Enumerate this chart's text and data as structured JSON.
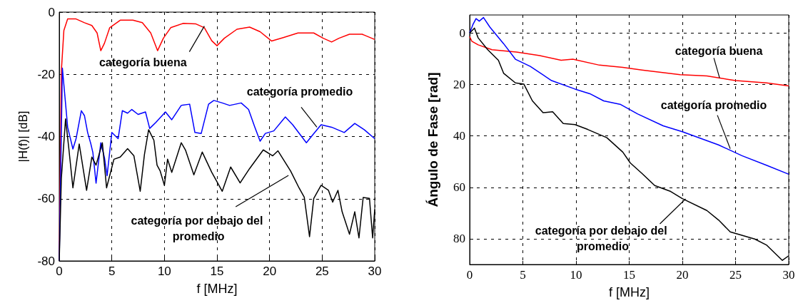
{
  "chart_data": [
    {
      "type": "line",
      "xlabel": "f [MHz]",
      "ylabel": "|H(f)| [dB]",
      "xlim": [
        0,
        30
      ],
      "xticks": [
        0,
        5,
        10,
        15,
        20,
        25,
        30
      ],
      "ylim": [
        -80,
        0
      ],
      "yticks": [
        -80,
        -60,
        -40,
        -20,
        0
      ],
      "grid": true,
      "annotations": [
        {
          "text": "categoría buena",
          "x": 13.8,
          "y": -4.5
        },
        {
          "text": "categoría promedio",
          "x": 24.5,
          "y": -37
        },
        {
          "text": "categoría por debajo del promedio",
          "x": 21.8,
          "y": -52.5
        }
      ],
      "series": [
        {
          "color": "#ff0000",
          "x": [
            0,
            0.2,
            0.44,
            0.8,
            1.6,
            2.4,
            3.1,
            3.6,
            3.95,
            4.3,
            4.8,
            5.8,
            7,
            7.9,
            8.7,
            9.35,
            9.9,
            10.6,
            11.8,
            13,
            13.8,
            14.5,
            15,
            15.7,
            16.9,
            18.1,
            19.1,
            20.2,
            21.3,
            22.7,
            24.2,
            25.1,
            25.9,
            26.6,
            27.6,
            28.8,
            30
          ],
          "values": [
            -80,
            -19,
            -5.9,
            -2.2,
            -2.2,
            -3.4,
            -4.3,
            -6.7,
            -12.4,
            -10,
            -5,
            -2.6,
            -2.6,
            -3.4,
            -6.7,
            -12.4,
            -8.4,
            -5,
            -3.6,
            -3.8,
            -5,
            -9.2,
            -10.8,
            -8.4,
            -5.5,
            -4.8,
            -6.3,
            -9.3,
            -8.2,
            -6.7,
            -6.7,
            -8.4,
            -9.6,
            -8.4,
            -7.1,
            -7.1,
            -8.8
          ]
        },
        {
          "color": "#0000ff",
          "x": [
            0,
            0.3,
            0.8,
            1.3,
            1.6,
            2.1,
            2.4,
            2.7,
            3,
            3.2,
            3.5,
            3.95,
            4.3,
            4.55,
            5,
            5.6,
            6,
            6.5,
            6.9,
            7.5,
            8.2,
            8.6,
            9.2,
            10.1,
            10.7,
            11.6,
            12.4,
            12.9,
            13.5,
            14.2,
            14.7,
            15.5,
            16.2,
            17.3,
            18,
            18.6,
            19.1,
            19.6,
            20.4,
            21.5,
            22.2,
            23.5,
            24.1,
            24.9,
            25.9,
            27.1,
            28.1,
            29,
            30
          ],
          "values": [
            -80,
            -18,
            -37,
            -44,
            -40.7,
            -31.7,
            -33.3,
            -38.7,
            -42.3,
            -45.2,
            -55,
            -42,
            -46.8,
            -52.6,
            -38.7,
            -40.7,
            -31.7,
            -32.5,
            -31.3,
            -32.9,
            -32.1,
            -37.4,
            -35.4,
            -32.1,
            -34.6,
            -30,
            -29.6,
            -38.7,
            -39,
            -29.6,
            -28.4,
            -29.2,
            -30,
            -29.2,
            -31.3,
            -37,
            -41.5,
            -39,
            -38.2,
            -33.7,
            -36.2,
            -42,
            -39.5,
            -36.2,
            -37,
            -38.7,
            -35.8,
            -37.8,
            -40.7
          ]
        },
        {
          "color": "#000000",
          "x": [
            0,
            0.2,
            0.6,
            0.9,
            1.3,
            1.9,
            2.6,
            3.1,
            3.5,
            4.1,
            4.5,
            5.2,
            5.8,
            6.5,
            7.1,
            7.7,
            8.1,
            8.5,
            9,
            9.3,
            9.6,
            10,
            10.3,
            10.7,
            11.6,
            12,
            12.8,
            13.6,
            14.5,
            15.5,
            16.3,
            17.2,
            18.1,
            19.4,
            20.3,
            20.8,
            22,
            22.8,
            23.3,
            23.8,
            24.2,
            24.9,
            25.6,
            26,
            26.5,
            26.9,
            27.6,
            28.1,
            28.5,
            28.9,
            29.5,
            29.8,
            30
          ],
          "values": [
            -80,
            -53.5,
            -34.3,
            -43.5,
            -56.5,
            -42.4,
            -57.3,
            -46.6,
            -49.2,
            -42,
            -56.5,
            -47.3,
            -46.6,
            -43.9,
            -46.2,
            -57.6,
            -45.8,
            -37.8,
            -41.2,
            -49.2,
            -51.1,
            -55.7,
            -47.3,
            -51.5,
            -42,
            -44.3,
            -52.3,
            -45,
            -51.5,
            -57.6,
            -49.8,
            -54.9,
            -50.3,
            -44.3,
            -46.2,
            -44.6,
            -51.1,
            -56.5,
            -59.5,
            -72.2,
            -59.9,
            -55.7,
            -57.3,
            -61.1,
            -57.3,
            -64.2,
            -71.4,
            -64.2,
            -72.6,
            -59.6,
            -59.9,
            -72.6,
            -63.4
          ]
        }
      ]
    },
    {
      "type": "line",
      "xlabel": "f [MHz]",
      "ylabel": "Ángulo de Fase [rad]",
      "xlim": [
        0,
        30
      ],
      "xticks": [
        0,
        5,
        10,
        15,
        20,
        25,
        30
      ],
      "ylim": [
        90,
        -7
      ],
      "yticks": [
        0,
        20,
        40,
        60,
        80
      ],
      "grid": true,
      "annotations": [
        {
          "text": "categoría buena",
          "x": 23.5,
          "y": 17.5
        },
        {
          "text": "categoría promedio",
          "x": 24.5,
          "y": 45
        },
        {
          "text": "categoría por debajo del promedio",
          "x": 20.3,
          "y": 64.5
        }
      ],
      "series": [
        {
          "color": "#ff0000",
          "x": [
            0,
            0.2,
            0.8,
            2.1,
            4.4,
            6.6,
            8.6,
            9.7,
            12.2,
            14.4,
            16.2,
            19.8,
            22.3,
            25,
            27.9,
            30
          ],
          "values": [
            1.4,
            3.2,
            4.6,
            6.5,
            7.4,
            8.8,
            10.6,
            10.2,
            12.5,
            13.4,
            14.4,
            16.2,
            16.7,
            18.5,
            19.4,
            20.6
          ]
        },
        {
          "color": "#0000ff",
          "x": [
            0,
            0.3,
            0.6,
            0.9,
            1.3,
            1.9,
            3.2,
            4.3,
            5.7,
            7.7,
            9.9,
            11.3,
            12.6,
            14.2,
            15.8,
            18.2,
            20,
            23.4,
            25.6,
            27.9,
            30
          ],
          "values": [
            0,
            -3.2,
            -5.6,
            -4.6,
            -6,
            -2.3,
            4.2,
            10.2,
            13,
            18.5,
            21.8,
            23.6,
            26.4,
            27.8,
            31.5,
            36.1,
            38.4,
            43.5,
            47.7,
            51.4,
            54.9
          ]
        },
        {
          "color": "#000000",
          "x": [
            0,
            0.45,
            0.8,
            1.7,
            2.7,
            3.2,
            4.3,
            5.1,
            5.9,
            6.9,
            7.8,
            8.8,
            9.9,
            11.1,
            12.9,
            14.4,
            15.1,
            16.2,
            17.4,
            18.9,
            20,
            22.3,
            23.4,
            24.5,
            26.8,
            27.9,
            29.4,
            30
          ],
          "values": [
            0,
            -1.9,
            1.9,
            6.5,
            10.6,
            15.7,
            19.4,
            19.9,
            26.4,
            31,
            30.6,
            35.2,
            35.6,
            37.5,
            40.7,
            46.3,
            50.5,
            54.6,
            59.3,
            61.6,
            64.4,
            69,
            72.7,
            77.3,
            80.1,
            82.4,
            88.4,
            86.6
          ]
        }
      ]
    }
  ]
}
